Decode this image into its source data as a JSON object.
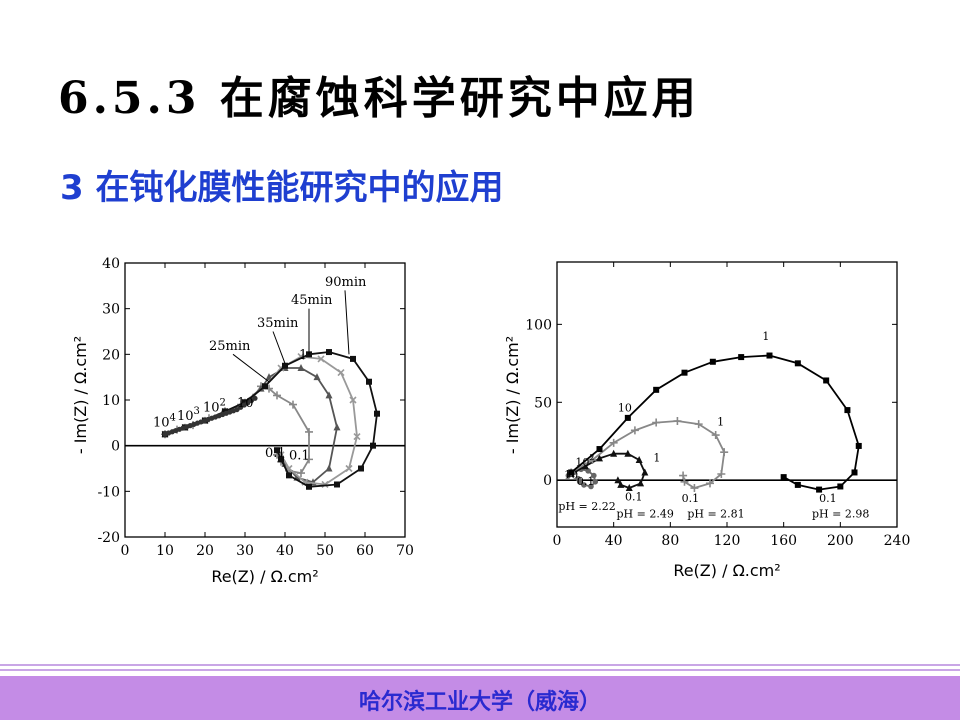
{
  "slide": {
    "title": "6.5.3 在腐蚀科学研究中应用",
    "subtitle": "3 在钝化膜性能研究中的应用",
    "footer": "哈尔滨工业大学（威海）"
  },
  "chart_data": [
    {
      "type": "line",
      "xlabel": "Re(Z)  /  Ω.cm²",
      "ylabel": "- Im(Z)  /  Ω.cm²",
      "xlim": [
        0,
        70
      ],
      "ylim": [
        -20,
        40
      ],
      "xticks": [
        0,
        10,
        20,
        30,
        40,
        50,
        60,
        70
      ],
      "yticks": [
        -20,
        -10,
        0,
        10,
        20,
        30,
        40
      ],
      "legend": "curve labels",
      "annotations": [
        {
          "text": "25min",
          "x": 21,
          "y": 21
        },
        {
          "text": "35min",
          "x": 33,
          "y": 26
        },
        {
          "text": "45min",
          "x": 41.5,
          "y": 31
        },
        {
          "text": "90min",
          "x": 50,
          "y": 35
        },
        {
          "text": "10",
          "x": 7,
          "y": 4.2,
          "sup": "4"
        },
        {
          "text": "10",
          "x": 13,
          "y": 5.6,
          "sup": "3"
        },
        {
          "text": "10",
          "x": 19.5,
          "y": 7.5,
          "sup": "2"
        },
        {
          "text": "10",
          "x": 28,
          "y": 8.5
        },
        {
          "text": "1",
          "x": 43.5,
          "y": 19
        },
        {
          "text": "0.1",
          "x": 35,
          "y": -2.5
        },
        {
          "text": "0.1",
          "x": 41,
          "y": -3
        }
      ],
      "series": [
        {
          "name": "25min",
          "color": "#888888",
          "marker": "plus",
          "points": [
            [
              10,
              2.5
            ],
            [
              13,
              3.5
            ],
            [
              17,
              4.5
            ],
            [
              21,
              6
            ],
            [
              25,
              7.5
            ],
            [
              29,
              9
            ],
            [
              32,
              10.5
            ],
            [
              34,
              13
            ],
            [
              36,
              12.5
            ],
            [
              38,
              11
            ],
            [
              42,
              9
            ],
            [
              46,
              3
            ],
            [
              46,
              -3
            ],
            [
              44,
              -6
            ],
            [
              41,
              -5.5
            ],
            [
              39,
              -3.5
            ],
            [
              38,
              -2
            ]
          ]
        },
        {
          "name": "35min",
          "color": "#555555",
          "marker": "triangle",
          "points": [
            [
              10,
              2.5
            ],
            [
              15,
              4
            ],
            [
              20,
              5.5
            ],
            [
              25,
              7.5
            ],
            [
              30,
              9.5
            ],
            [
              34,
              12.5
            ],
            [
              36,
              15
            ],
            [
              40,
              17
            ],
            [
              44,
              17
            ],
            [
              48,
              15
            ],
            [
              51,
              11
            ],
            [
              53,
              4
            ],
            [
              51,
              -5
            ],
            [
              47,
              -8
            ],
            [
              43,
              -7
            ],
            [
              40,
              -4
            ],
            [
              39,
              -2
            ]
          ]
        },
        {
          "name": "45min",
          "color": "#999999",
          "marker": "x",
          "points": [
            [
              10,
              2.5
            ],
            [
              15,
              4
            ],
            [
              20,
              5.5
            ],
            [
              25,
              7.5
            ],
            [
              30,
              9.5
            ],
            [
              35,
              13
            ],
            [
              39,
              17
            ],
            [
              44,
              19.5
            ],
            [
              49,
              19
            ],
            [
              54,
              16
            ],
            [
              57,
              10
            ],
            [
              58,
              2
            ],
            [
              56,
              -5
            ],
            [
              50,
              -8.5
            ],
            [
              45,
              -8
            ],
            [
              41,
              -5
            ],
            [
              39,
              -2
            ]
          ]
        },
        {
          "name": "90min",
          "color": "#111111",
          "marker": "square",
          "points": [
            [
              10,
              2.5
            ],
            [
              15,
              4
            ],
            [
              20,
              5.5
            ],
            [
              25,
              7.5
            ],
            [
              30,
              9.5
            ],
            [
              35,
              13
            ],
            [
              40,
              17.5
            ],
            [
              46,
              20
            ],
            [
              51,
              20.5
            ],
            [
              57,
              19
            ],
            [
              61,
              14
            ],
            [
              63,
              7
            ],
            [
              62,
              0
            ],
            [
              59,
              -5
            ],
            [
              53,
              -8.5
            ],
            [
              46,
              -9
            ],
            [
              41,
              -6.5
            ],
            [
              39,
              -3
            ],
            [
              38,
              -1
            ]
          ]
        }
      ]
    },
    {
      "type": "line",
      "xlabel": "Re(Z)  /  Ω.cm²",
      "ylabel": "- Im(Z)  /  Ω.cm²",
      "xlim": [
        0,
        240
      ],
      "ylim": [
        -30,
        140
      ],
      "xticks": [
        0,
        40,
        80,
        120,
        160,
        200,
        240
      ],
      "yticks": [
        0,
        50,
        100
      ],
      "legend": "curve labels",
      "annotations": [
        {
          "text": "1",
          "x": 145,
          "y": 90
        },
        {
          "text": "1",
          "x": 113,
          "y": 35
        },
        {
          "text": "1",
          "x": 68,
          "y": 12
        },
        {
          "text": "10",
          "x": 43,
          "y": 44
        },
        {
          "text": "10",
          "x": 13,
          "y": 9,
          "sup": "2"
        },
        {
          "text": "10",
          "x": 5,
          "y": 1
        },
        {
          "text": "0.1",
          "x": 185,
          "y": -14
        },
        {
          "text": "0.1",
          "x": 88,
          "y": -14
        },
        {
          "text": "0.1",
          "x": 48,
          "y": -13
        },
        {
          "text": "0.1",
          "x": 14,
          "y": -3
        },
        {
          "text": "pH = 2.22",
          "x": 1,
          "y": -19
        },
        {
          "text": "pH = 2.49",
          "x": 42,
          "y": -24
        },
        {
          "text": "pH = 2.81",
          "x": 92,
          "y": -24
        },
        {
          "text": "pH = 2.98",
          "x": 180,
          "y": -24
        }
      ],
      "series": [
        {
          "name": "pH = 2.22",
          "color": "#666666",
          "marker": "dot",
          "points": [
            [
              8,
              3
            ],
            [
              12,
              5
            ],
            [
              17,
              7
            ],
            [
              22,
              6
            ],
            [
              26,
              3
            ],
            [
              27,
              -1
            ],
            [
              24,
              -4
            ],
            [
              19,
              -3
            ],
            [
              16,
              -1
            ],
            [
              15,
              1
            ]
          ]
        },
        {
          "name": "pH = 2.49",
          "color": "#111111",
          "marker": "triangle",
          "points": [
            [
              10,
              4
            ],
            [
              20,
              9
            ],
            [
              30,
              14
            ],
            [
              40,
              17
            ],
            [
              50,
              17
            ],
            [
              58,
              13
            ],
            [
              62,
              5
            ],
            [
              59,
              -2
            ],
            [
              51,
              -5
            ],
            [
              45,
              -3
            ],
            [
              43,
              0
            ]
          ]
        },
        {
          "name": "pH = 2.81",
          "color": "#888888",
          "marker": "plus",
          "points": [
            [
              10,
              5
            ],
            [
              25,
              13
            ],
            [
              40,
              24
            ],
            [
              55,
              32
            ],
            [
              70,
              37
            ],
            [
              85,
              38
            ],
            [
              100,
              36
            ],
            [
              112,
              29
            ],
            [
              118,
              18
            ],
            [
              116,
              4
            ],
            [
              108,
              -2
            ],
            [
              97,
              -5
            ],
            [
              90,
              -1
            ],
            [
              89,
              3
            ]
          ]
        },
        {
          "name": "pH = 2.98",
          "color": "#000000",
          "marker": "square",
          "points": [
            [
              10,
              5
            ],
            [
              30,
              20
            ],
            [
              50,
              40
            ],
            [
              70,
              58
            ],
            [
              90,
              69
            ],
            [
              110,
              76
            ],
            [
              130,
              79
            ],
            [
              150,
              80
            ],
            [
              170,
              75
            ],
            [
              190,
              64
            ],
            [
              205,
              45
            ],
            [
              213,
              22
            ],
            [
              210,
              5
            ],
            [
              200,
              -4
            ],
            [
              185,
              -6
            ],
            [
              170,
              -3
            ],
            [
              160,
              2
            ]
          ]
        }
      ]
    }
  ]
}
